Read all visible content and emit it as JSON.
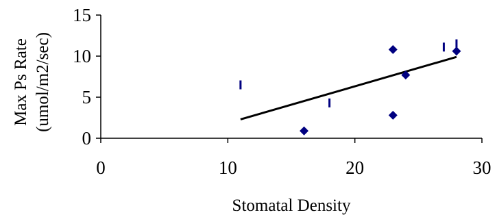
{
  "chart_data": {
    "type": "scatter",
    "title": "",
    "xlabel": "Stomatal Density",
    "ylabel_lines": [
      "Max Ps Rate",
      "(umol/m2/sec)"
    ],
    "xlim": [
      0,
      30
    ],
    "ylim": [
      0,
      15
    ],
    "x_ticks": [
      0,
      10,
      20,
      30
    ],
    "y_ticks": [
      0,
      5,
      10,
      15
    ],
    "x_tick_labels": [
      "0",
      "10",
      "20",
      "30"
    ],
    "y_tick_labels": [
      "0",
      "5",
      "10",
      "15"
    ],
    "grid": false,
    "legend": "none",
    "series": [
      {
        "marker": "diamond",
        "color": "#000080",
        "points": [
          [
            16,
            0.9
          ],
          [
            23,
            2.8
          ],
          [
            23,
            10.8
          ],
          [
            24,
            7.7
          ],
          [
            28,
            10.6
          ]
        ]
      },
      {
        "marker": "vertical-dash",
        "color": "#000080",
        "points": [
          [
            11,
            6.5
          ],
          [
            18,
            4.3
          ],
          [
            27,
            11.1
          ],
          [
            28,
            11.5
          ]
        ]
      }
    ],
    "trendline": {
      "color": "#000000",
      "points": [
        [
          11,
          2.3
        ],
        [
          28,
          9.9
        ]
      ]
    }
  }
}
